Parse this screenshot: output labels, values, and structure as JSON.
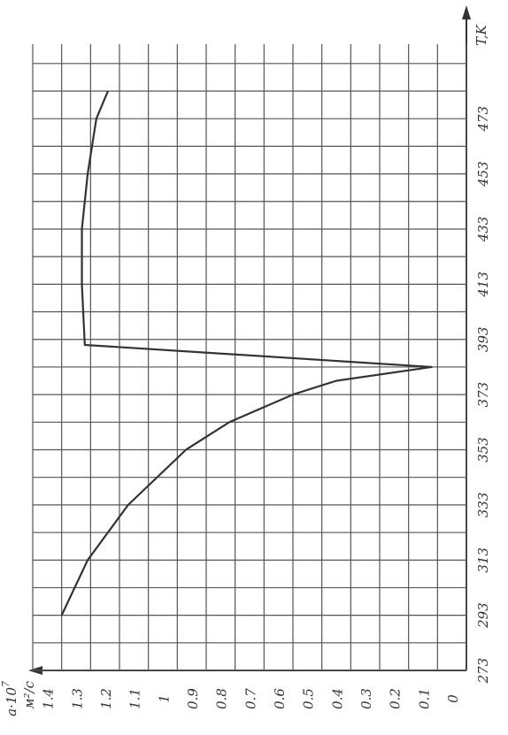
{
  "chart_data": {
    "type": "line",
    "x_label": "T,K",
    "y_label": "a·10",
    "y_label_exp": "7",
    "y_unit": "м²/с",
    "x": [
      293,
      313,
      333,
      353,
      363,
      373,
      378,
      383,
      391,
      413,
      433,
      453,
      473,
      483
    ],
    "series": [
      {
        "color": "#333",
        "values": [
          1.4,
          1.31,
          1.17,
          0.97,
          0.82,
          0.6,
          0.45,
          0.12,
          1.32,
          1.33,
          1.33,
          1.31,
          1.28,
          1.24
        ]
      }
    ],
    "xlim": [
      273,
      500
    ],
    "xticks": [
      273,
      293,
      313,
      333,
      353,
      373,
      393,
      413,
      433,
      453,
      473
    ],
    "x_minor_ticks": [
      283,
      303,
      323,
      343,
      363,
      383,
      403,
      423,
      443,
      463,
      483,
      493
    ],
    "ylim": [
      0,
      1.5
    ],
    "yticks": [
      0,
      0.1,
      0.2,
      0.3,
      0.4,
      0.5,
      0.6,
      0.7,
      0.8,
      0.9,
      1.0,
      1.1,
      1.2,
      1.3,
      1.4
    ],
    "y_minor_ticks": [
      1.5
    ],
    "grid": true
  }
}
